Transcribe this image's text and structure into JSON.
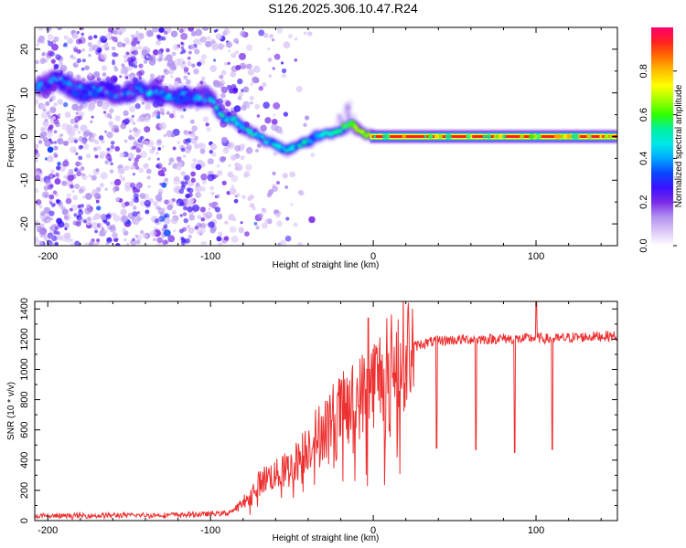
{
  "figure_title": "S126.2025.306.10.47.R24",
  "chart_data": [
    {
      "type": "heatmap",
      "title": "",
      "xlabel": "Height of straight line (km)",
      "ylabel": "Frequency (Hz)",
      "xlim": [
        -208,
        150
      ],
      "ylim": [
        -25,
        25
      ],
      "x_ticks": [
        -200,
        -100,
        0,
        100
      ],
      "x_tick_labels": [
        "-200",
        "-100",
        "0",
        "100"
      ],
      "y_ticks": [
        -20,
        -10,
        0,
        10,
        20
      ],
      "y_tick_labels": [
        "-20",
        "-10",
        "0",
        "10",
        "20"
      ],
      "ridge": {
        "x": [
          -205,
          -195,
          -185,
          -175,
          -165,
          -155,
          -145,
          -135,
          -125,
          -115,
          -105,
          -100,
          -92,
          -85,
          -80,
          -75,
          -70,
          -65,
          -60,
          -55,
          -52,
          -48,
          -44,
          -40,
          -35,
          -30,
          -25,
          -20,
          -16,
          -13,
          -10,
          -6,
          -2,
          0,
          50,
          100,
          150
        ],
        "y": [
          11,
          13,
          11,
          10,
          11,
          9,
          11,
          10,
          9,
          9,
          9,
          9,
          4,
          3.5,
          2,
          1,
          0,
          -1,
          -2,
          -3,
          -3,
          -2.5,
          -1.5,
          -1,
          0,
          0.5,
          1,
          1.5,
          2.5,
          3.5,
          2,
          0.5,
          0,
          0,
          0,
          0,
          0
        ]
      },
      "colorbar": {
        "label": "Normalized spectral amplitude",
        "range": [
          0,
          1
        ],
        "ticks": [
          0,
          0.2,
          0.4,
          0.6,
          0.8
        ],
        "tick_labels": [
          "0.0",
          "0.2",
          "0.4",
          "0.6",
          "0.8"
        ],
        "colors": [
          "#ffffff",
          "#dcc8f8",
          "#b090ef",
          "#7a2ae8",
          "#3a12ff",
          "#0a48ff",
          "#00a8ff",
          "#00e8e8",
          "#00f0a0",
          "#30ff00",
          "#a0ff00",
          "#ffff00",
          "#ffc000",
          "#ff7000",
          "#ff2020",
          "#ff0070"
        ]
      }
    },
    {
      "type": "line",
      "title": "",
      "xlabel": "Height of straight line (km)",
      "ylabel": "SNR (10 * v/v)",
      "xlim": [
        -208,
        150
      ],
      "ylim": [
        0,
        1450
      ],
      "x_ticks": [
        -200,
        -100,
        0,
        100
      ],
      "x_tick_labels": [
        "-200",
        "-100",
        "0",
        "100"
      ],
      "y_ticks": [
        0,
        200,
        400,
        600,
        800,
        1000,
        1200,
        1400
      ],
      "y_tick_labels": [
        "0",
        "200",
        "400",
        "600",
        "800",
        "1000",
        "1200",
        "1400"
      ],
      "series": [
        {
          "name": "SNR",
          "color": "#ee3030",
          "x": [
            -208,
            -200,
            -180,
            -160,
            -140,
            -120,
            -110,
            -100,
            -90,
            -85,
            -80,
            -75,
            -70,
            -65,
            -60,
            -55,
            -50,
            -45,
            -40,
            -35,
            -30,
            -25,
            -20,
            -15,
            -10,
            -5,
            0,
            5,
            10,
            15,
            20,
            25,
            30,
            35,
            40,
            50,
            60,
            70,
            80,
            90,
            100,
            110,
            120,
            130,
            140,
            150
          ],
          "y": [
            30,
            30,
            32,
            35,
            35,
            38,
            40,
            45,
            50,
            70,
            120,
            180,
            250,
            290,
            300,
            330,
            360,
            420,
            500,
            560,
            620,
            680,
            720,
            760,
            800,
            860,
            920,
            970,
            1020,
            1080,
            1120,
            1150,
            1170,
            1180,
            1190,
            1195,
            1200,
            1200,
            1205,
            1200,
            1210,
            1200,
            1210,
            1215,
            1220,
            1220
          ],
          "dips": [
            {
              "x": 39,
              "y": 480
            },
            {
              "x": 63,
              "y": 470
            },
            {
              "x": 87,
              "y": 450
            },
            {
              "x": 110,
              "y": 470
            }
          ],
          "spikes": [
            {
              "x": -3,
              "y": 1340
            },
            {
              "x": 100,
              "y": 1460
            }
          ]
        }
      ]
    }
  ]
}
